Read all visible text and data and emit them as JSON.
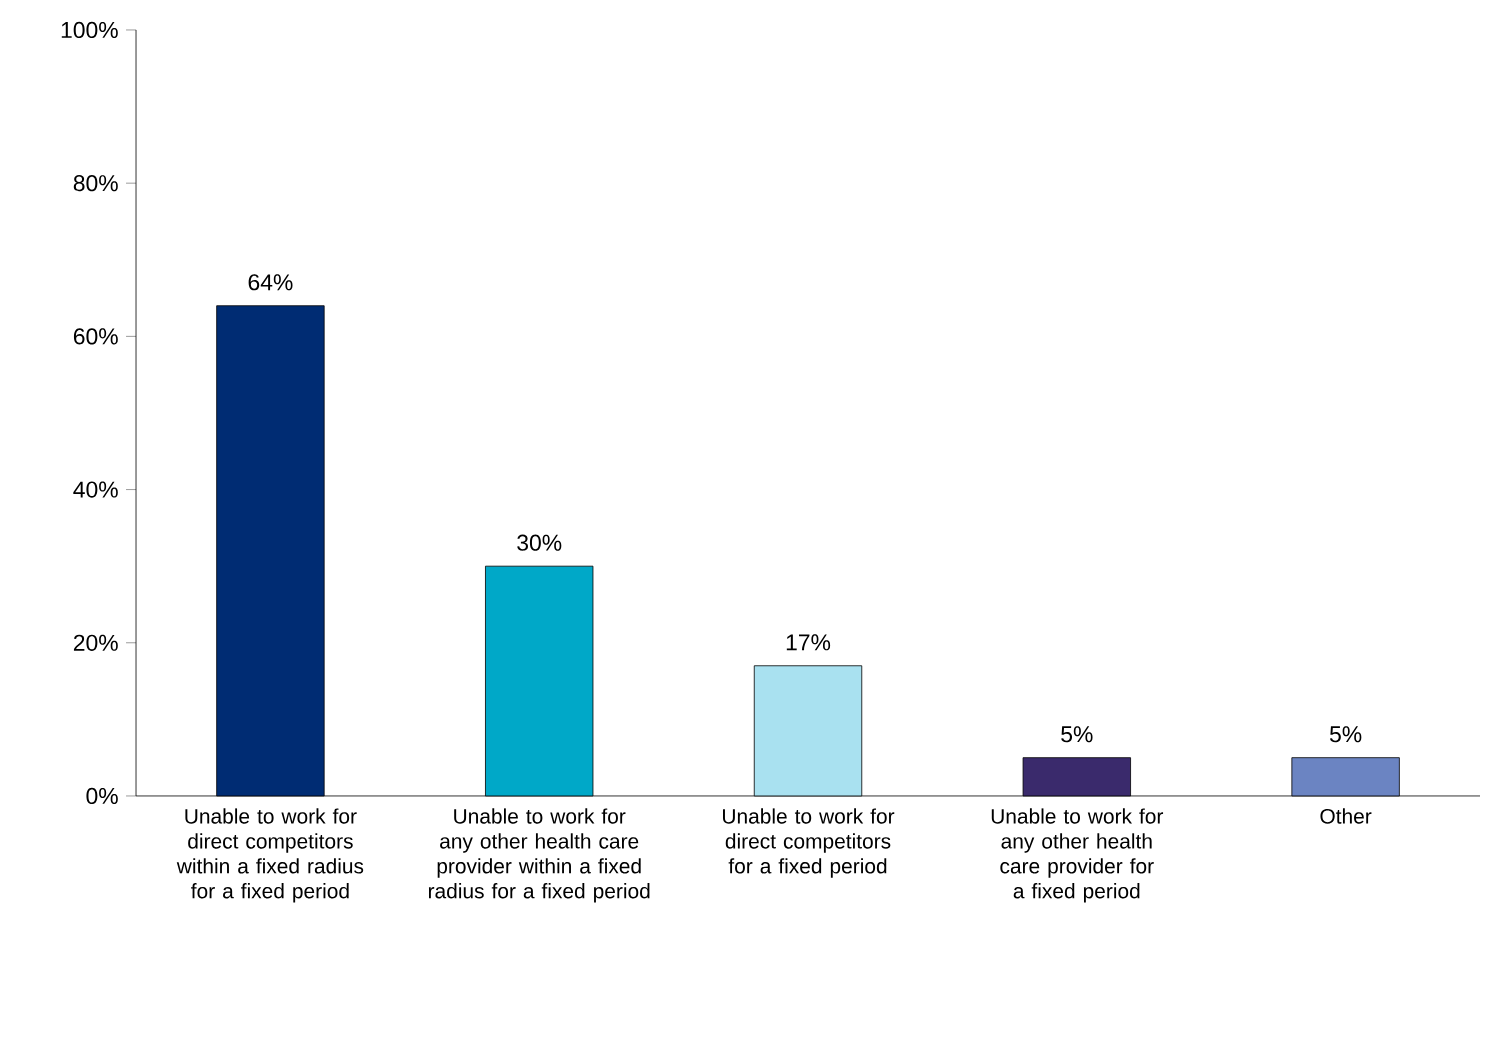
{
  "chart_data": {
    "type": "bar",
    "categories": [
      "Unable to work for direct competitors within a fixed radius for a fixed period",
      "Unable to work for any other health care provider within a fixed radius for a fixed period",
      "Unable to work for direct competitors for a fixed period",
      "Unable to work for any other health care provider for a fixed period",
      "Other"
    ],
    "values": [
      64,
      30,
      17,
      5,
      5
    ],
    "value_labels": [
      "64%",
      "30%",
      "17%",
      "5%",
      "5%"
    ],
    "colors": [
      "#002c73",
      "#00a8c8",
      "#a9e1f0",
      "#3a2a6c",
      "#6b84c2"
    ],
    "ylim": [
      0,
      100
    ],
    "yticks": [
      {
        "value": 0,
        "label": "0%"
      },
      {
        "value": 20,
        "label": "20%"
      },
      {
        "value": 40,
        "label": "40%"
      },
      {
        "value": 60,
        "label": "60%"
      },
      {
        "value": 80,
        "label": "80%"
      },
      {
        "value": 100,
        "label": "100%"
      }
    ]
  }
}
